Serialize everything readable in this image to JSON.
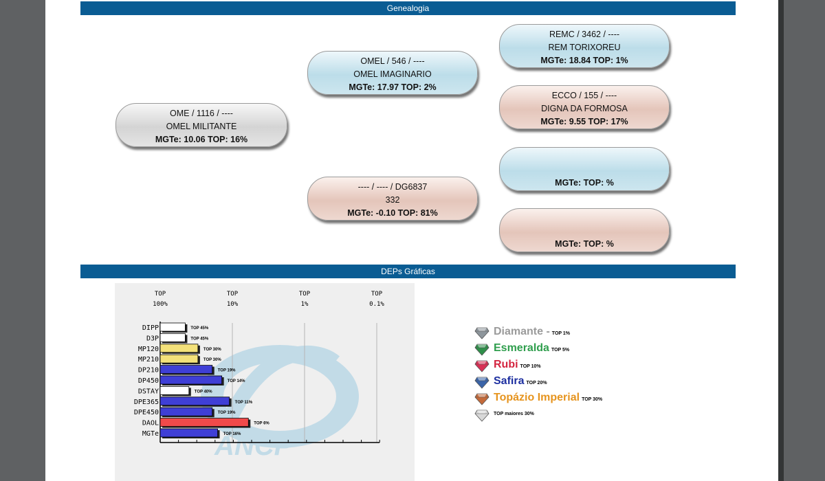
{
  "genealogia": {
    "title": "Genealogia",
    "animal": {
      "line1": "OME / 1116 / ----",
      "line2": "OMEL MILITANTE",
      "line3": "MGTe: 10.06   TOP: 16%"
    },
    "pai": {
      "line1": "OMEL / 546 / ----",
      "line2": "OMEL IMAGINARIO",
      "line3": "MGTe: 17.97   TOP: 2%"
    },
    "mae": {
      "line1": "---- / ---- / DG6837",
      "line2": "332",
      "line3": "MGTe: -0.10   TOP: 81%"
    },
    "avo_paterno": {
      "line1": "REMC / 3462 / ----",
      "line2": "REM TORIXOREU",
      "line3": "MGTe: 18.84   TOP: 1%"
    },
    "avo_paterna": {
      "line1": "ECCO / 155 / ----",
      "line2": "DIGNA DA FORMOSA",
      "line3": "MGTe: 9.55   TOP: 17%"
    },
    "avo_materno": {
      "line3": "MGTe:    TOP: %"
    },
    "avo_materna": {
      "line3": "MGTe:    TOP: %"
    }
  },
  "deps": {
    "title": "DEPs Gráficas",
    "logo_text": "ANCP"
  },
  "chart_data": {
    "type": "bar",
    "orientation": "horizontal",
    "axis_ticks": [
      {
        "l1": "TOP",
        "l2": "100%"
      },
      {
        "l1": "TOP",
        "l2": "10%"
      },
      {
        "l1": "TOP",
        "l2": "1%"
      },
      {
        "l1": "TOP",
        "l2": "0.1%"
      }
    ],
    "categories": [
      "DIPP",
      "D3P",
      "MP120",
      "MP210",
      "DP210",
      "DP450",
      "DSTAY",
      "DPE365",
      "DPE450",
      "DAOL",
      "MGTe"
    ],
    "top_percent": [
      45,
      45,
      30,
      30,
      19,
      14,
      40,
      11,
      19,
      6,
      16
    ],
    "labels": [
      "TOP 45%",
      "TOP 45%",
      "TOP 30%",
      "TOP 30%",
      "TOP 19%",
      "TOP 14%",
      "TOP 40%",
      "TOP 11%",
      "TOP 19%",
      "TOP 6%",
      "TOP 16%"
    ],
    "classes": [
      "other",
      "other",
      "topazio",
      "topazio",
      "safira",
      "safira",
      "other",
      "safira",
      "safira",
      "rubi",
      "safira"
    ]
  },
  "colors": {
    "safira": "#3f3fd6",
    "topazio": "#f3e17a",
    "rubi": "#f04a4a",
    "other": "#ffffff",
    "header_bar": "#0a5c93"
  },
  "legend": {
    "items": [
      {
        "name": "Diamante",
        "suffix": " -",
        "top": "TOP 1%",
        "color": "#9b9b9b",
        "gem": "#8e969c",
        "icon": "diamond-gem-icon"
      },
      {
        "name": "Esmeralda",
        "suffix": "",
        "top": "TOP 5%",
        "color": "#2f9e4d",
        "gem": "#2f8f4a",
        "icon": "emerald-gem-icon"
      },
      {
        "name": "Rubi",
        "suffix": "",
        "top": "TOP 10%",
        "color": "#d4243f",
        "gem": "#d83055",
        "icon": "ruby-gem-icon"
      },
      {
        "name": "Safira",
        "suffix": "",
        "top": "TOP 20%",
        "color": "#1d2fa0",
        "gem": "#3a64a8",
        "icon": "sapphire-gem-icon"
      },
      {
        "name": "Topázio Imperial",
        "suffix": "",
        "top": "TOP 30%",
        "color": "#e6941e",
        "gem": "#c46a3a",
        "icon": "topaz-gem-icon"
      }
    ],
    "others": {
      "label": "TOP maiores 30%",
      "gem": "#d8d8d8"
    }
  }
}
